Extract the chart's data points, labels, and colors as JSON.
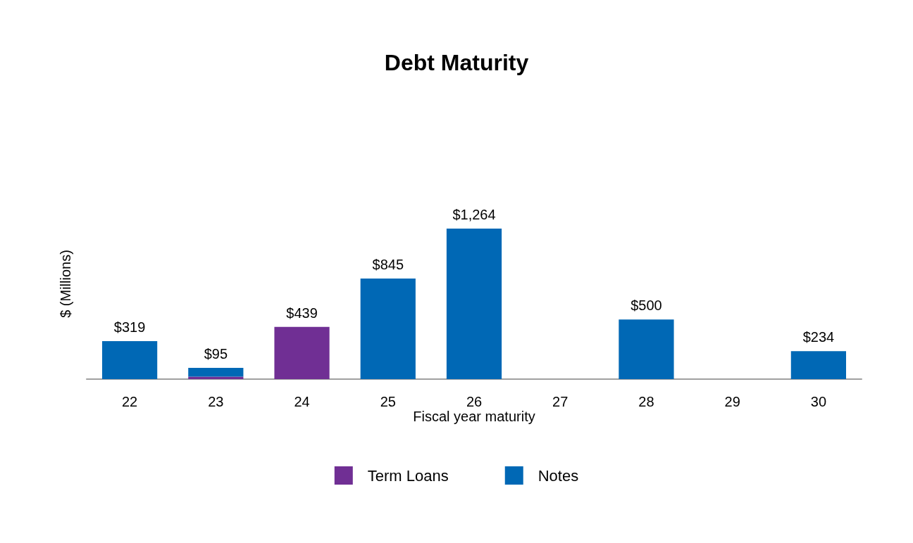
{
  "chart_data": {
    "type": "bar",
    "title": "Debt Maturity",
    "xlabel": "Fiscal year maturity",
    "ylabel": "$ (Millions)",
    "categories": [
      "22",
      "23",
      "24",
      "25",
      "26",
      "27",
      "28",
      "29",
      "30"
    ],
    "stacked": true,
    "series": [
      {
        "name": "Term Loans",
        "color": "#702f94",
        "values": [
          null,
          20,
          439,
          null,
          null,
          null,
          null,
          null,
          null
        ],
        "value_labels": [
          null,
          null,
          "$439",
          null,
          null,
          null,
          null,
          null,
          null
        ]
      },
      {
        "name": "Notes",
        "color": "#0068b5",
        "values": [
          319,
          75,
          null,
          845,
          1264,
          null,
          500,
          null,
          234
        ],
        "value_labels": [
          "$319",
          null,
          null,
          "$845",
          "$1,264",
          null,
          "$500",
          null,
          "$234"
        ]
      }
    ],
    "totals": [
      null,
      "$95",
      null,
      null,
      null,
      null,
      null,
      null,
      null
    ],
    "grid": false,
    "legend": "bottom",
    "tick_labels": "x"
  }
}
